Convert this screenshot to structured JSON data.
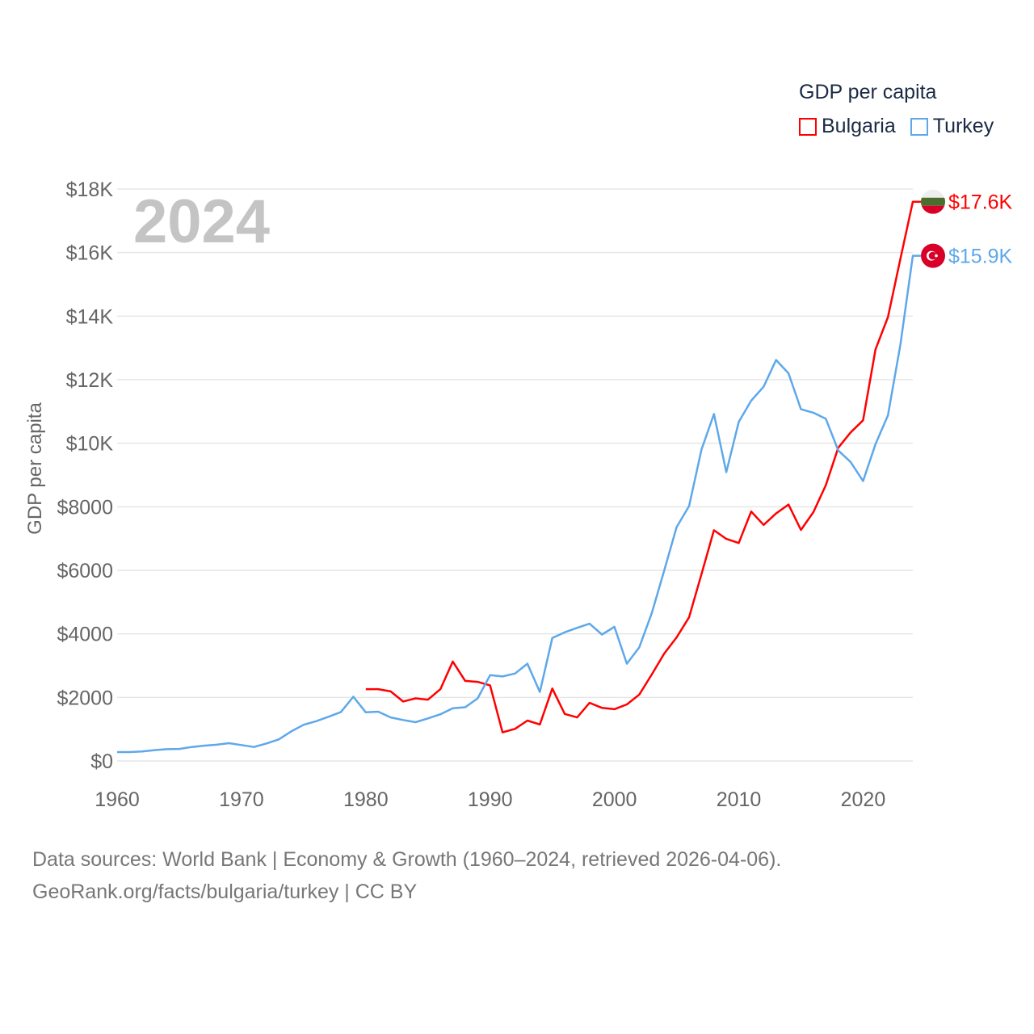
{
  "chart_data": {
    "type": "line",
    "title": "GDP per capita",
    "ylabel": "GDP per capita",
    "xlabel": "",
    "year_label": "2024",
    "xlim": [
      1960,
      2024
    ],
    "ylim": [
      0,
      18000
    ],
    "x_ticks": [
      "1960",
      "1970",
      "1980",
      "1990",
      "2000",
      "2010",
      "2020"
    ],
    "y_ticks": [
      "$0",
      "$2000",
      "$4000",
      "$6000",
      "$8000",
      "$10K",
      "$12K",
      "$14K",
      "$16K",
      "$18K"
    ],
    "grid": true,
    "legend_placement": "top-right",
    "series": [
      {
        "name": "Bulgaria",
        "color": "#ff0000",
        "start_year": 1980,
        "end_label": "$17.6K",
        "values": [
          2260,
          2260,
          2190,
          1870,
          1970,
          1930,
          2260,
          3130,
          2520,
          2490,
          2380,
          900,
          1010,
          1270,
          1150,
          2280,
          1480,
          1370,
          1830,
          1670,
          1630,
          1780,
          2090,
          2720,
          3380,
          3890,
          4520,
          5880,
          7260,
          6990,
          6860,
          7850,
          7430,
          7790,
          8070,
          7270,
          7830,
          8680,
          9860,
          10340,
          10720,
          12950,
          13970,
          15800,
          17600
        ]
      },
      {
        "name": "Turkey",
        "color": "#5ea8ea",
        "start_year": 1960,
        "end_label": "$15.9K",
        "values": [
          280,
          280,
          300,
          340,
          370,
          380,
          440,
          480,
          510,
          560,
          500,
          440,
          550,
          680,
          930,
          1140,
          1250,
          1390,
          1540,
          2020,
          1530,
          1550,
          1370,
          1290,
          1220,
          1340,
          1470,
          1660,
          1690,
          1970,
          2700,
          2660,
          2750,
          3060,
          2170,
          3870,
          4050,
          4190,
          4320,
          3980,
          4220,
          3060,
          3580,
          4650,
          5990,
          7360,
          8020,
          9800,
          10920,
          9090,
          10670,
          11340,
          11780,
          12620,
          12200,
          11070,
          10960,
          10770,
          9770,
          9410,
          8810,
          9970,
          10880,
          13100,
          15900
        ]
      }
    ]
  },
  "footer": {
    "line1": "Data sources: World Bank | Economy & Growth (1960–2024, retrieved 2026-04-06).",
    "line2": "GeoRank.org/facts/bulgaria/turkey | CC BY"
  }
}
